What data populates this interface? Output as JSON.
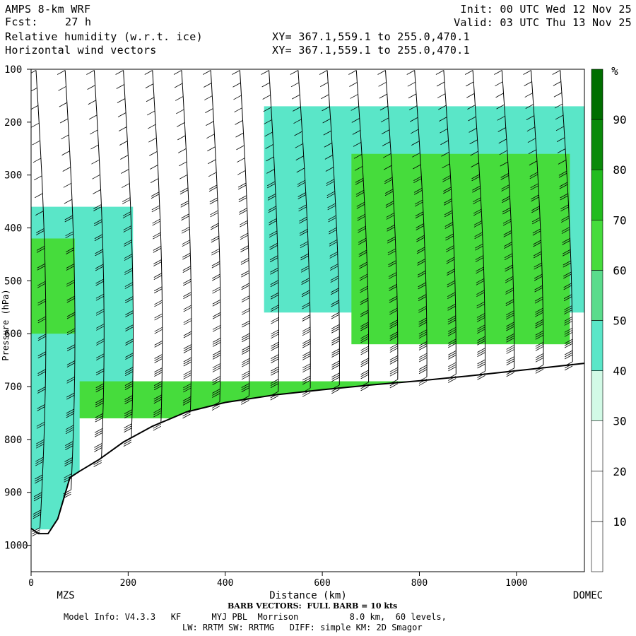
{
  "header": {
    "model": "AMPS 8-km WRF",
    "forecast_label": "Fcst:",
    "forecast_value": "27 h",
    "field1": "Relative humidity (w.r.t. ice)",
    "field2": "Horizontal wind vectors",
    "xy1": "XY= 367.1,559.1 to 255.0,470.1",
    "xy2": "XY= 367.1,559.1 to 255.0,470.1",
    "init": "Init: 00 UTC Wed 12 Nov 25",
    "valid": "Valid: 03 UTC Thu 13 Nov 25"
  },
  "footer": {
    "barb_note": "BARB VECTORS:  FULL BARB = 10 kts",
    "model_info_1": "Model Info: V4.3.3   KF      MYJ PBL  Morrison          8.0 km,  60 levels,",
    "model_info_2": "LW: RRTM SW: RRTMG   DIFF: simple KM: 2D Smagor"
  },
  "chart_data": {
    "type": "heatmap",
    "title": "Relative humidity (w.r.t. ice) and horizontal wind vectors cross-section",
    "xlabel": "Distance (km)",
    "ylabel": "Pressure (hPa)",
    "xlim": [
      0,
      1140
    ],
    "ylim": [
      1050,
      100
    ],
    "x_ticks": [
      0,
      200,
      400,
      600,
      800,
      1000
    ],
    "y_ticks": [
      100,
      200,
      300,
      400,
      500,
      600,
      700,
      800,
      900,
      1000
    ],
    "x_endpoint_labels": [
      "MZS",
      "DOMEC"
    ],
    "colorbar": {
      "unit": "%",
      "levels": [
        10,
        20,
        30,
        40,
        50,
        60,
        70,
        80,
        90
      ],
      "colors": [
        "#ffffff",
        "#ffffff",
        "#ffffff",
        "#d2fae6",
        "#5ae6c8",
        "#5adc8c",
        "#46dc3c",
        "#22bc1e",
        "#0a8a0a",
        "#006e00"
      ]
    },
    "terrain": {
      "x_km": [
        0,
        15,
        35,
        55,
        80,
        100,
        140,
        190,
        250,
        320,
        400,
        500,
        600,
        700,
        800,
        900,
        1000,
        1100,
        1140
      ],
      "surface_hpa": [
        968,
        978,
        978,
        950,
        872,
        860,
        838,
        805,
        775,
        748,
        730,
        716,
        706,
        697,
        689,
        680,
        670,
        660,
        656
      ]
    },
    "rh_regions": [
      {
        "name": "upper-layer-moist",
        "x_range_km": [
          480,
          1140
        ],
        "p_range_hpa": [
          170,
          560
        ],
        "rh_percent": 45
      },
      {
        "name": "upper-core-moist",
        "x_range_km": [
          660,
          1110
        ],
        "p_range_hpa": [
          260,
          620
        ],
        "rh_percent": 60
      },
      {
        "name": "upper-core-wettest",
        "x_range_km": [
          760,
          930
        ],
        "p_range_hpa": [
          290,
          400
        ],
        "rh_percent": 65
      },
      {
        "name": "west-mid-layer",
        "x_range_km": [
          0,
          210
        ],
        "p_range_hpa": [
          360,
          700
        ],
        "rh_percent": 45
      },
      {
        "name": "west-mid-core",
        "x_range_km": [
          0,
          90
        ],
        "p_range_hpa": [
          420,
          620
        ],
        "rh_percent": 60
      },
      {
        "name": "near-surface-layer",
        "x_range_km": [
          60,
          1140
        ],
        "p_range_hpa": [
          690,
          760
        ],
        "rh_percent": 60
      },
      {
        "name": "coastal-low-level",
        "x_range_km": [
          0,
          100
        ],
        "p_range_hpa": [
          600,
          970
        ],
        "rh_percent": 45
      }
    ],
    "wind_barbs": {
      "x_km": [
        10,
        70,
        130,
        190,
        250,
        310,
        370,
        430,
        490,
        550,
        610,
        670,
        730,
        790,
        850,
        910,
        970,
        1030,
        1090
      ],
      "max_speed_kts_near_surface": 30,
      "upper_speed_kts": 25
    }
  }
}
